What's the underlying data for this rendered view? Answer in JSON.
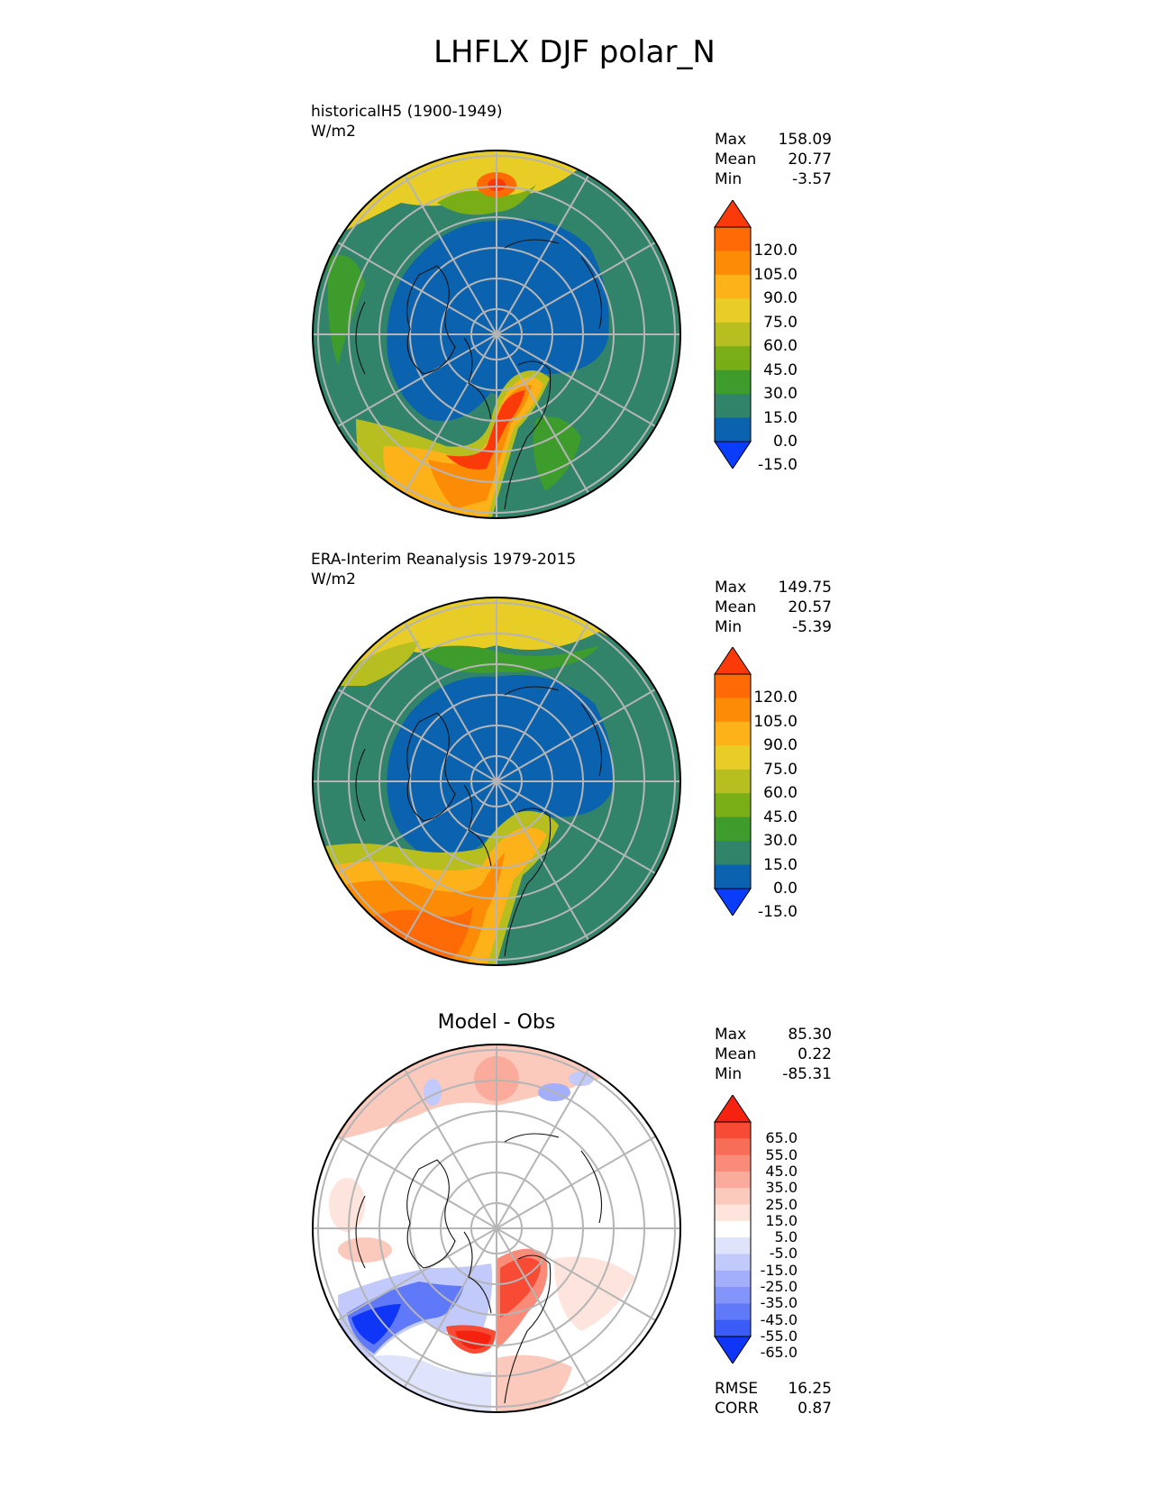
{
  "title": "LHFLX DJF polar_N",
  "panels": [
    {
      "title": "historicalH5 (1900-1949)",
      "units": "W/m2",
      "stats": [
        {
          "label": "Max",
          "value": "158.09"
        },
        {
          "label": "Mean",
          "value": "20.77"
        },
        {
          "label": "Min",
          "value": "-3.57"
        }
      ],
      "colorbar": {
        "levels": [
          "120.0",
          "105.0",
          "90.0",
          "75.0",
          "60.0",
          "45.0",
          "30.0",
          "15.0",
          "0.0",
          "-15.0"
        ],
        "colors": [
          "#fb3a0a",
          "#fd6a06",
          "#fc8c05",
          "#fdb21a",
          "#e7cd25",
          "#b7bf20",
          "#7aae17",
          "#3e9c2d",
          "#31846a",
          "#0b63b0",
          "#0a3cfb"
        ]
      }
    },
    {
      "title": "ERA-Interim Reanalysis 1979-2015",
      "units": "W/m2",
      "stats": [
        {
          "label": "Max",
          "value": "149.75"
        },
        {
          "label": "Mean",
          "value": "20.57"
        },
        {
          "label": "Min",
          "value": "-5.39"
        }
      ],
      "colorbar": {
        "levels": [
          "120.0",
          "105.0",
          "90.0",
          "75.0",
          "60.0",
          "45.0",
          "30.0",
          "15.0",
          "0.0",
          "-15.0"
        ],
        "colors": [
          "#fb3a0a",
          "#fd6a06",
          "#fc8c05",
          "#fdb21a",
          "#e7cd25",
          "#b7bf20",
          "#7aae17",
          "#3e9c2d",
          "#31846a",
          "#0b63b0",
          "#0a3cfb"
        ]
      }
    },
    {
      "title": "Model - Obs",
      "stats": [
        {
          "label": "Max",
          "value": "85.30"
        },
        {
          "label": "Mean",
          "value": "0.22"
        },
        {
          "label": "Min",
          "value": "-85.31"
        }
      ],
      "colorbar": {
        "levels": [
          "65.0",
          "55.0",
          "45.0",
          "35.0",
          "25.0",
          "15.0",
          "5.0",
          "-5.0",
          "-15.0",
          "-25.0",
          "-35.0",
          "-45.0",
          "-55.0",
          "-65.0"
        ],
        "colors": [
          "#f5220f",
          "#f74b36",
          "#f86d58",
          "#f98b78",
          "#fbab9b",
          "#fcc9bd",
          "#fde4dc",
          "#ffffff",
          "#dfe3fb",
          "#c2c9fb",
          "#a3affa",
          "#8395fa",
          "#6079f9",
          "#3c5cf8",
          "#0f36f6"
        ]
      },
      "metrics": [
        {
          "label": "RMSE",
          "value": "16.25"
        },
        {
          "label": "CORR",
          "value": "0.87"
        }
      ]
    }
  ]
}
